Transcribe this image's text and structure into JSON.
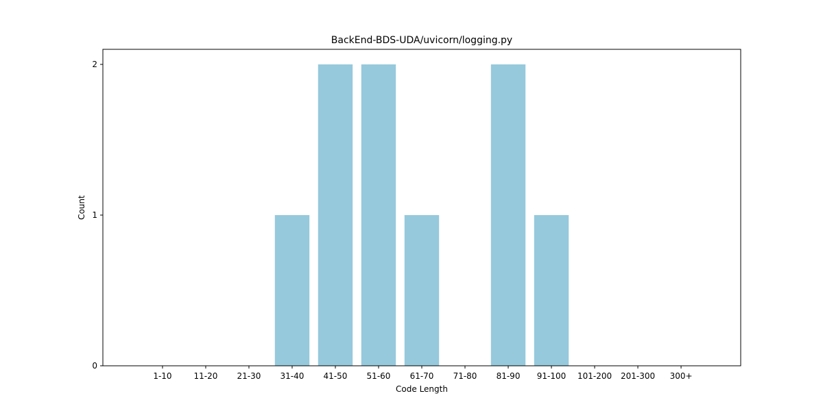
{
  "chart_data": {
    "type": "bar",
    "title": "BackEnd-BDS-UDA/uvicorn/logging.py",
    "xlabel": "Code Length",
    "ylabel": "Count",
    "categories": [
      "1-10",
      "11-20",
      "21-30",
      "31-40",
      "41-50",
      "51-60",
      "61-70",
      "71-80",
      "81-90",
      "91-100",
      "101-200",
      "201-300",
      "300+"
    ],
    "values": [
      0,
      0,
      0,
      1,
      2,
      2,
      1,
      0,
      2,
      1,
      0,
      0,
      0
    ],
    "ylim": [
      0,
      2.1
    ],
    "yticks": [
      0,
      1,
      2
    ],
    "bar_color": "#96c9dc",
    "grid": false
  }
}
